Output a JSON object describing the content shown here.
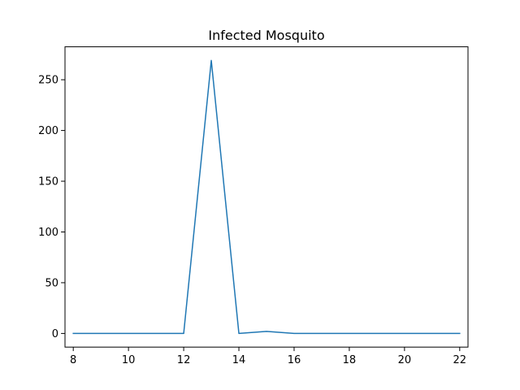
{
  "chart_data": {
    "type": "line",
    "title": "Infected Mosquito",
    "xlabel": "",
    "ylabel": "",
    "xlim": [
      7.7,
      22.3
    ],
    "ylim": [
      -13.45,
      282.45
    ],
    "grid": false,
    "legend": "none",
    "x_ticks": [
      8,
      10,
      12,
      14,
      16,
      18,
      20,
      22
    ],
    "y_ticks": [
      0,
      50,
      100,
      150,
      200,
      250
    ],
    "series": [
      {
        "color": "#1f77b4",
        "x": [
          8,
          9,
          10,
          11,
          12,
          13,
          14,
          15,
          16,
          17,
          18,
          19,
          20,
          21,
          22
        ],
        "values": [
          0,
          0,
          0,
          0,
          0,
          269,
          0,
          2,
          0,
          0,
          0,
          0,
          0,
          0,
          0
        ]
      }
    ]
  }
}
